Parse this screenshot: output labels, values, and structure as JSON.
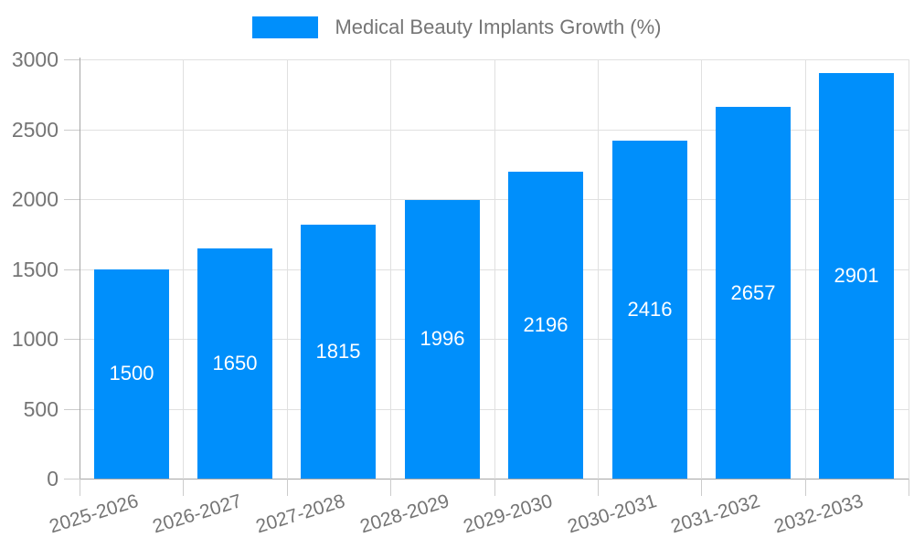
{
  "legend": {
    "position": "top",
    "items": [
      {
        "label": "Medical Beauty Implants Growth (%)",
        "color": "#008FFB"
      }
    ]
  },
  "chart_data": {
    "type": "bar",
    "title": "Medical Beauty Implants Growth (%)",
    "categories": [
      "2025-2026",
      "2026-2027",
      "2027-2028",
      "2028-2029",
      "2029-2030",
      "2030-2031",
      "2031-2032",
      "2032-2033"
    ],
    "values": [
      1500,
      1650,
      1815,
      1996,
      2196,
      2416,
      2657,
      2901
    ],
    "series": [
      {
        "name": "Medical Beauty Implants Growth (%)",
        "values": [
          1500,
          1650,
          1815,
          1996,
          2196,
          2416,
          2657,
          2901
        ]
      }
    ],
    "xlabel": "",
    "ylabel": "",
    "ylim": [
      0,
      3000
    ],
    "yticks": [
      0,
      500,
      1000,
      1500,
      2000,
      2500,
      3000
    ],
    "grid": "horizontal-and-vertical",
    "legend_position": "top",
    "value_label_position": "inside-center",
    "x_label_rotation_deg": -17
  },
  "colors": {
    "bar": "#008FFB",
    "grid": "#e0e0e0",
    "axis": "#a6a6a6",
    "tick": "#cccccc",
    "axis_text": "#757575",
    "value_text": "#ffffff",
    "legend_text": "#757575",
    "background": "#ffffff"
  }
}
